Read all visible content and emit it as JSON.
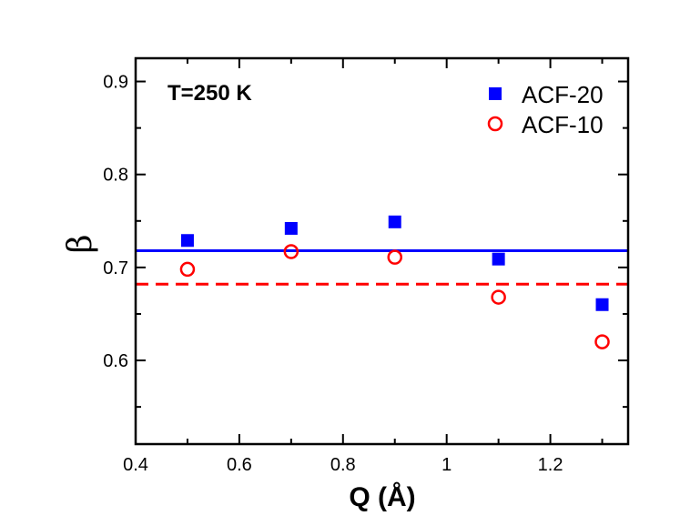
{
  "chart_data": {
    "type": "scatter",
    "annotation": "T=250 K",
    "xlabel": "Q  (Å)",
    "ylabel": "β",
    "xlim": [
      0.4,
      1.35
    ],
    "ylim": [
      0.51,
      0.925
    ],
    "x_ticks": [
      0.4,
      0.6,
      0.8,
      1.0,
      1.2
    ],
    "x_tick_labels": [
      "0.4",
      "0.6",
      "0.8",
      "1",
      "1.2"
    ],
    "y_ticks": [
      0.6,
      0.7,
      0.8,
      0.9
    ],
    "y_tick_labels": [
      "0.6",
      "0.7",
      "0.8",
      "0.9"
    ],
    "legend_position": "top-right",
    "series": [
      {
        "name": "ACF-20",
        "marker": "filled-square",
        "color": "#0000ff",
        "x": [
          0.5,
          0.7,
          0.9,
          1.1,
          1.3
        ],
        "y": [
          0.729,
          0.742,
          0.749,
          0.709,
          0.66
        ],
        "fit_line": {
          "y": 0.718,
          "style": "solid"
        }
      },
      {
        "name": "ACF-10",
        "marker": "open-circle",
        "color": "#ff0000",
        "x": [
          0.5,
          0.7,
          0.9,
          1.1,
          1.3
        ],
        "y": [
          0.698,
          0.717,
          0.711,
          0.668,
          0.62
        ],
        "fit_line": {
          "y": 0.682,
          "style": "dashed"
        }
      }
    ]
  }
}
